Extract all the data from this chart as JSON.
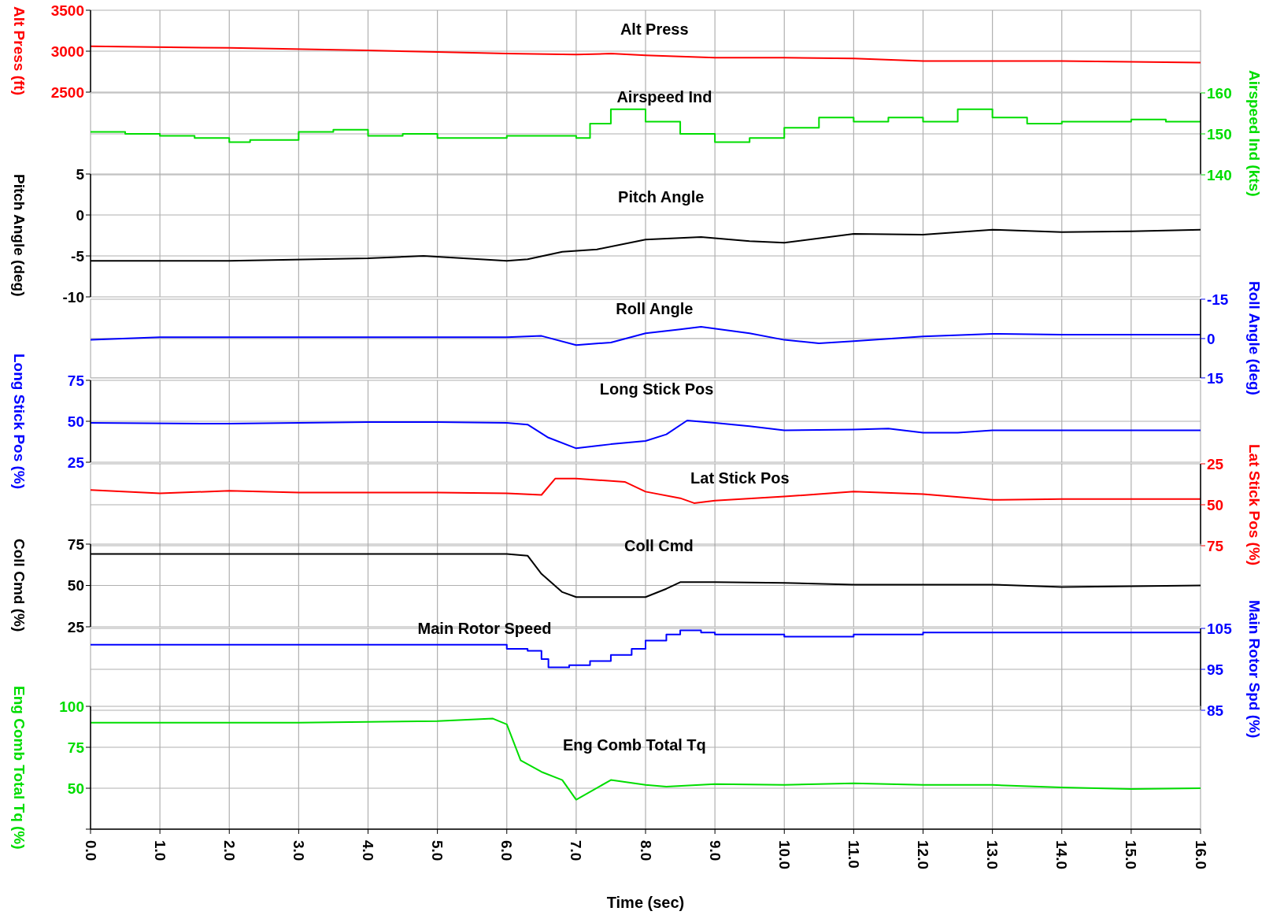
{
  "chart_data": [
    {
      "type": "line",
      "title": "Alt Press",
      "ylabel": "Alt Press (ft)",
      "x": [
        0,
        2,
        4,
        5,
        6,
        7,
        7.5,
        8,
        9,
        10,
        11,
        12,
        13,
        14,
        15,
        16
      ],
      "series": [
        {
          "color": "#ff0000",
          "values": [
            3060,
            3040,
            3010,
            2990,
            2970,
            2960,
            2970,
            2950,
            2920,
            2920,
            2910,
            2880,
            2880,
            2880,
            2870,
            2860
          ]
        }
      ],
      "xlim": [
        0,
        16
      ],
      "xticks": [
        0,
        1,
        2,
        3,
        4,
        5,
        6,
        7,
        8,
        9,
        10,
        11,
        12,
        13,
        14,
        15,
        16
      ],
      "ylim": [
        2500,
        3500
      ],
      "yticks": [
        2500,
        3000,
        3500
      ],
      "grid": true,
      "tick_labels": "y"
    },
    {
      "type": "step",
      "title": "Airspeed Ind",
      "y2label": "Airspeed Ind (kts)",
      "x": [
        0,
        0.5,
        1,
        1.5,
        2,
        2.3,
        3,
        3.5,
        4,
        4.5,
        5,
        6,
        7,
        7.2,
        7.5,
        8,
        8.5,
        9,
        9.5,
        10,
        10.5,
        11,
        11.5,
        12,
        12.5,
        13,
        13.5,
        14,
        14.5,
        15,
        15.5,
        16
      ],
      "series": [
        {
          "color": "#00dd00",
          "axis": "y2",
          "values": [
            150.5,
            150,
            149.5,
            149,
            148,
            148.5,
            150.5,
            151,
            149.5,
            150,
            149,
            149.5,
            149,
            152.5,
            156,
            153,
            150,
            148,
            149,
            151.5,
            154,
            153,
            154,
            153,
            156,
            154,
            152.5,
            153,
            153,
            153.5,
            153,
            153
          ]
        }
      ],
      "xlim": [
        0,
        16
      ],
      "xticks": [
        0,
        1,
        2,
        3,
        4,
        5,
        6,
        7,
        8,
        9,
        10,
        11,
        12,
        13,
        14,
        15,
        16
      ],
      "y2lim": [
        140,
        160
      ],
      "y2ticks": [
        140,
        150,
        160
      ],
      "grid": true,
      "tick_labels": "y"
    },
    {
      "type": "line",
      "title": "Pitch Angle",
      "ylabel": "Pitch Angle (deg)",
      "x": [
        0,
        2,
        4,
        4.8,
        6,
        6.3,
        6.8,
        7.3,
        8,
        8.8,
        9.5,
        10,
        11,
        12,
        13,
        14,
        15,
        16
      ],
      "series": [
        {
          "color": "#000000",
          "values": [
            -5.6,
            -5.6,
            -5.3,
            -5,
            -5.6,
            -5.4,
            -4.5,
            -4.2,
            -3,
            -2.7,
            -3.2,
            -3.4,
            -2.3,
            -2.4,
            -1.8,
            -2.1,
            -2,
            -1.8
          ]
        }
      ],
      "xlim": [
        0,
        16
      ],
      "xticks": [
        0,
        1,
        2,
        3,
        4,
        5,
        6,
        7,
        8,
        9,
        10,
        11,
        12,
        13,
        14,
        15,
        16
      ],
      "ylim": [
        -10,
        5
      ],
      "yticks": [
        -10,
        -5,
        0,
        5
      ],
      "grid": true,
      "tick_labels": "y"
    },
    {
      "type": "line",
      "title": "Roll Angle",
      "y2label": "Roll Angle (deg)",
      "x": [
        0,
        1,
        6,
        6.5,
        7,
        7.5,
        8,
        8.5,
        8.8,
        9.5,
        10,
        10.5,
        11,
        12,
        13,
        14,
        15,
        16
      ],
      "series": [
        {
          "color": "#0000ff",
          "axis": "y2",
          "values": [
            0.5,
            -0.5,
            -0.5,
            -1,
            2.5,
            1.5,
            -2,
            -3.5,
            -4.5,
            -2,
            0.5,
            1.8,
            1,
            -0.8,
            -1.8,
            -1.5,
            -1.5,
            -1.5
          ]
        }
      ],
      "xlim": [
        0,
        16
      ],
      "xticks": [
        0,
        1,
        2,
        3,
        4,
        5,
        6,
        7,
        8,
        9,
        10,
        11,
        12,
        13,
        14,
        15,
        16
      ],
      "y2lim": [
        15,
        -15
      ],
      "y2ticks": [
        -15,
        0,
        15
      ],
      "grid": true,
      "tick_labels": "y"
    },
    {
      "type": "line",
      "title": "Long Stick Pos",
      "ylabel": "Long Stick Pos (%)",
      "x": [
        0,
        2,
        4,
        5,
        6,
        6.3,
        6.6,
        7,
        7.5,
        8,
        8.3,
        8.6,
        9,
        9.5,
        10,
        11,
        11.5,
        12,
        12.5,
        13,
        16
      ],
      "series": [
        {
          "color": "#0000ff",
          "values": [
            49,
            48.5,
            49.5,
            49.5,
            49,
            48,
            40,
            33.5,
            36,
            38,
            42,
            50.5,
            49,
            47,
            44.5,
            45,
            45.5,
            43,
            43,
            44.5,
            44.5
          ]
        }
      ],
      "xlim": [
        0,
        16
      ],
      "xticks": [
        0,
        1,
        2,
        3,
        4,
        5,
        6,
        7,
        8,
        9,
        10,
        11,
        12,
        13,
        14,
        15,
        16
      ],
      "ylim": [
        25,
        75
      ],
      "yticks": [
        25,
        50,
        75
      ],
      "grid": true,
      "tick_labels": "y"
    },
    {
      "type": "line",
      "title": "Lat Stick Pos",
      "y2label": "Lat Stick Pos (%)",
      "x": [
        0,
        1,
        2,
        3,
        4,
        5,
        6,
        6.5,
        6.7,
        7,
        7.7,
        8,
        8.5,
        8.7,
        9,
        10,
        11,
        12,
        13,
        14,
        15,
        16
      ],
      "series": [
        {
          "color": "#ff0000",
          "axis": "y2",
          "values": [
            41,
            43,
            41.5,
            42.5,
            42.5,
            42.5,
            43,
            44,
            34,
            34,
            36,
            42,
            46,
            49,
            47.5,
            45,
            42,
            43.5,
            47,
            46.5,
            46.5,
            46.5
          ]
        }
      ],
      "xlim": [
        0,
        16
      ],
      "xticks": [
        0,
        1,
        2,
        3,
        4,
        5,
        6,
        7,
        8,
        9,
        10,
        11,
        12,
        13,
        14,
        15,
        16
      ],
      "y2lim": [
        75,
        25
      ],
      "y2ticks": [
        25,
        50,
        75
      ],
      "grid": true,
      "tick_labels": "y"
    },
    {
      "type": "line",
      "title": "Coll Cmd",
      "ylabel": "Coll Cmd (%)",
      "x": [
        0,
        6,
        6.3,
        6.5,
        6.8,
        7,
        7.5,
        8,
        8.3,
        8.5,
        9,
        10,
        11,
        12,
        13,
        14,
        15,
        16
      ],
      "series": [
        {
          "color": "#000000",
          "values": [
            69,
            69,
            68,
            57,
            46,
            43,
            43,
            43,
            48,
            52,
            52,
            51.5,
            50.5,
            50.5,
            50.5,
            49,
            49.5,
            50
          ]
        }
      ],
      "xlim": [
        0,
        16
      ],
      "xticks": [
        0,
        1,
        2,
        3,
        4,
        5,
        6,
        7,
        8,
        9,
        10,
        11,
        12,
        13,
        14,
        15,
        16
      ],
      "ylim": [
        25,
        75
      ],
      "yticks": [
        25,
        50,
        75
      ],
      "grid": true,
      "tick_labels": "y"
    },
    {
      "type": "step",
      "title": "Main Rotor Speed",
      "y2label": "Main Rotor Spd (%)",
      "x": [
        0,
        6,
        6.3,
        6.5,
        6.6,
        6.9,
        7.2,
        7.5,
        7.8,
        8,
        8.3,
        8.5,
        8.8,
        9,
        10,
        11,
        12,
        16
      ],
      "series": [
        {
          "color": "#0000ff",
          "axis": "y2",
          "values": [
            101,
            100,
            99.5,
            97.5,
            95.5,
            96,
            97,
            98.5,
            100,
            102,
            103.5,
            104.5,
            104,
            103.5,
            103,
            103.5,
            104,
            104
          ]
        }
      ],
      "xlim": [
        0,
        16
      ],
      "xticks": [
        0,
        1,
        2,
        3,
        4,
        5,
        6,
        7,
        8,
        9,
        10,
        11,
        12,
        13,
        14,
        15,
        16
      ],
      "y2lim": [
        85,
        105
      ],
      "y2ticks": [
        85,
        95,
        105
      ],
      "grid": true,
      "tick_labels": "y"
    },
    {
      "type": "line",
      "title": "Eng Comb Total Tq",
      "ylabel": "Eng Comb Total Tq (%)",
      "xlabel": "Time (sec)",
      "x": [
        0,
        3,
        5,
        5.8,
        6,
        6.2,
        6.5,
        6.8,
        7,
        7.5,
        8,
        8.3,
        9,
        10,
        11,
        12,
        13,
        14,
        15,
        16
      ],
      "series": [
        {
          "color": "#00dd00",
          "values": [
            90,
            90,
            91,
            92.5,
            89,
            67,
            60,
            55,
            43,
            55,
            52,
            51,
            52.5,
            52,
            53,
            52,
            52,
            50.5,
            49.5,
            50
          ]
        }
      ],
      "xlim": [
        0,
        16
      ],
      "xticks": [
        {
          "value": 0,
          "label": "0.0"
        },
        {
          "value": 1,
          "label": "1.0"
        },
        {
          "value": 2,
          "label": "2.0"
        },
        {
          "value": 3,
          "label": "3.0"
        },
        {
          "value": 4,
          "label": "4.0"
        },
        {
          "value": 5,
          "label": "5.0"
        },
        {
          "value": 6,
          "label": "6.0"
        },
        {
          "value": 7,
          "label": "7.0"
        },
        {
          "value": 8,
          "label": "8.0"
        },
        {
          "value": 9,
          "label": "9.0"
        },
        {
          "value": 10,
          "label": "10.0"
        },
        {
          "value": 11,
          "label": "11.0"
        },
        {
          "value": 12,
          "label": "12.0"
        },
        {
          "value": 13,
          "label": "13.0"
        },
        {
          "value": 14,
          "label": "14.0"
        },
        {
          "value": 15,
          "label": "15.0"
        },
        {
          "value": 16,
          "label": "16.0"
        }
      ],
      "ylim": [
        25,
        100
      ],
      "yticks": [
        {
          "value": 25,
          "label": null
        },
        50,
        75,
        100
      ],
      "grid": true
    }
  ]
}
